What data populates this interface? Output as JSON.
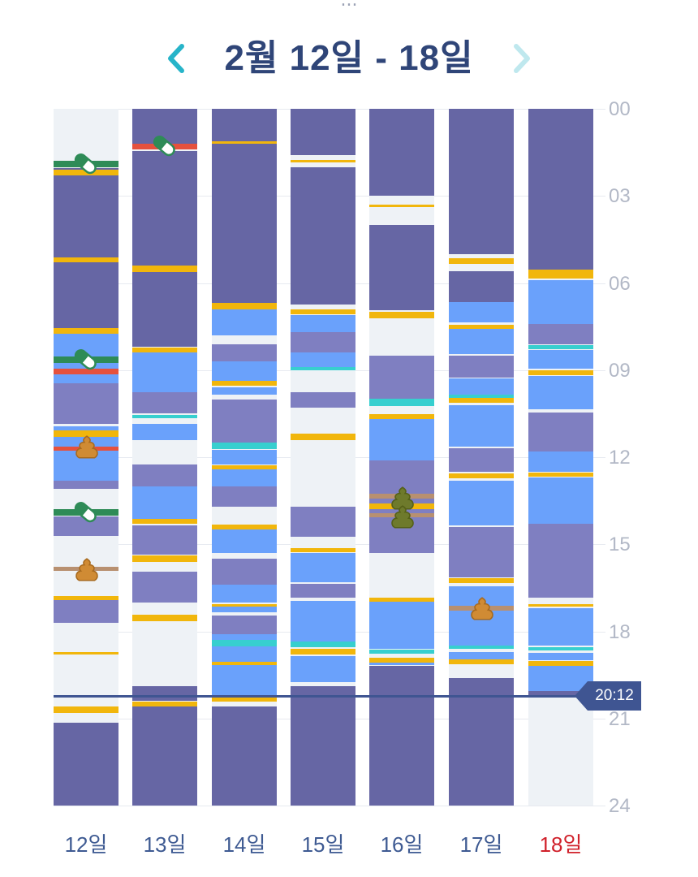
{
  "header": {
    "top_text": "...",
    "title": "2월 12일 - 18일",
    "prev_icon": "chevron-left-icon",
    "next_icon": "chevron-right-icon",
    "accent": "#27b4c9"
  },
  "hours": [
    "00",
    "03",
    "06",
    "09",
    "12",
    "15",
    "18",
    "21",
    "24"
  ],
  "now_time": "20:12",
  "colors": {
    "night_sleep": "#6666a4",
    "nap": "#7f7fc1",
    "awake_light": "#6aa1fb",
    "background": "#eef2f6",
    "feeding": "#f1b60c",
    "teal": "#37cfcf",
    "medicine_red": "#e5513d",
    "medicine_green": "#2e8b57",
    "diaper_brown": "#b89070",
    "now_line": "#3f5592"
  },
  "days": [
    {
      "label": "12일",
      "sunday": false,
      "segments": [
        {
          "start": 2.05,
          "end": 5.15,
          "type": "night_sleep"
        },
        {
          "start": 5.3,
          "end": 7.55,
          "type": "night_sleep"
        },
        {
          "start": 7.7,
          "end": 9.45,
          "type": "awake_light"
        },
        {
          "start": 9.45,
          "end": 10.85,
          "type": "nap"
        },
        {
          "start": 10.95,
          "end": 12.8,
          "type": "awake_light"
        },
        {
          "start": 12.8,
          "end": 13.1,
          "type": "nap"
        },
        {
          "start": 14.05,
          "end": 14.7,
          "type": "nap"
        },
        {
          "start": 16.8,
          "end": 17.7,
          "type": "nap"
        },
        {
          "start": 21.15,
          "end": 24,
          "type": "night_sleep"
        }
      ],
      "events": [
        {
          "at": 1.9,
          "h": 0.22,
          "type": "medicine_green"
        },
        {
          "at": 2.2,
          "h": 0.18,
          "type": "feeding"
        },
        {
          "at": 5.2,
          "h": 0.16,
          "type": "feeding"
        },
        {
          "at": 7.65,
          "h": 0.22,
          "type": "feeding"
        },
        {
          "at": 8.65,
          "h": 0.22,
          "type": "medicine_green"
        },
        {
          "at": 9.05,
          "h": 0.22,
          "type": "medicine_red"
        },
        {
          "at": 11.2,
          "h": 0.22,
          "type": "feeding"
        },
        {
          "at": 11.7,
          "h": 0.14,
          "type": "medicine_red"
        },
        {
          "at": 13.9,
          "h": 0.22,
          "type": "medicine_green"
        },
        {
          "at": 15.85,
          "h": 0.16,
          "type": "diaper_brown"
        },
        {
          "at": 16.85,
          "h": 0.14,
          "type": "feeding"
        },
        {
          "at": 18.75,
          "h": 0.07,
          "type": "feeding"
        },
        {
          "at": 20.7,
          "h": 0.22,
          "type": "feeding"
        }
      ],
      "icons": [
        {
          "kind": "pill",
          "at": 1.9
        },
        {
          "kind": "pill",
          "at": 8.65
        },
        {
          "kind": "poop",
          "at": 11.65
        },
        {
          "kind": "pill",
          "at": 13.9
        },
        {
          "kind": "poop",
          "at": 15.85
        }
      ]
    },
    {
      "label": "13일",
      "sunday": false,
      "segments": [
        {
          "start": 0,
          "end": 1.2,
          "type": "night_sleep"
        },
        {
          "start": 1.45,
          "end": 5.45,
          "type": "night_sleep"
        },
        {
          "start": 5.6,
          "end": 8.2,
          "type": "night_sleep"
        },
        {
          "start": 8.4,
          "end": 9.75,
          "type": "awake_light"
        },
        {
          "start": 9.75,
          "end": 10.5,
          "type": "nap"
        },
        {
          "start": 10.85,
          "end": 11.4,
          "type": "awake_light"
        },
        {
          "start": 12.25,
          "end": 13.0,
          "type": "nap"
        },
        {
          "start": 13.0,
          "end": 14.15,
          "type": "awake_light"
        },
        {
          "start": 14.35,
          "end": 15.35,
          "type": "nap"
        },
        {
          "start": 15.95,
          "end": 17.0,
          "type": "nap"
        },
        {
          "start": 19.9,
          "end": 20.4,
          "type": "night_sleep"
        },
        {
          "start": 20.6,
          "end": 24,
          "type": "night_sleep"
        }
      ],
      "events": [
        {
          "at": 1.3,
          "h": 0.22,
          "type": "medicine_red"
        },
        {
          "at": 5.5,
          "h": 0.22,
          "type": "feeding"
        },
        {
          "at": 8.3,
          "h": 0.18,
          "type": "feeding"
        },
        {
          "at": 10.6,
          "h": 0.12,
          "type": "teal"
        },
        {
          "at": 14.2,
          "h": 0.16,
          "type": "feeding"
        },
        {
          "at": 15.5,
          "h": 0.22,
          "type": "feeding"
        },
        {
          "at": 17.55,
          "h": 0.22,
          "type": "feeding"
        },
        {
          "at": 20.5,
          "h": 0.18,
          "type": "feeding"
        }
      ],
      "icons": [
        {
          "kind": "pill",
          "at": 1.3
        }
      ]
    },
    {
      "label": "14일",
      "sunday": false,
      "segments": [
        {
          "start": 0,
          "end": 6.7,
          "type": "night_sleep"
        },
        {
          "start": 6.9,
          "end": 7.8,
          "type": "awake_light"
        },
        {
          "start": 8.1,
          "end": 8.7,
          "type": "nap"
        },
        {
          "start": 8.7,
          "end": 9.4,
          "type": "awake_light"
        },
        {
          "start": 9.6,
          "end": 9.85,
          "type": "awake_light"
        },
        {
          "start": 10.0,
          "end": 11.5,
          "type": "nap"
        },
        {
          "start": 11.75,
          "end": 12.25,
          "type": "awake_light"
        },
        {
          "start": 12.4,
          "end": 13.0,
          "type": "awake_light"
        },
        {
          "start": 13.0,
          "end": 13.7,
          "type": "nap"
        },
        {
          "start": 14.5,
          "end": 15.3,
          "type": "awake_light"
        },
        {
          "start": 15.5,
          "end": 16.4,
          "type": "nap"
        },
        {
          "start": 16.4,
          "end": 17.0,
          "type": "awake_light"
        },
        {
          "start": 17.1,
          "end": 17.35,
          "type": "awake_light"
        },
        {
          "start": 17.45,
          "end": 18.1,
          "type": "nap"
        },
        {
          "start": 18.1,
          "end": 19.05,
          "type": "awake_light"
        },
        {
          "start": 19.05,
          "end": 20.2,
          "type": "awake_light"
        },
        {
          "start": 20.6,
          "end": 24,
          "type": "night_sleep"
        }
      ],
      "events": [
        {
          "at": 1.15,
          "h": 0.08,
          "type": "feeding"
        },
        {
          "at": 6.8,
          "h": 0.22,
          "type": "feeding"
        },
        {
          "at": 9.45,
          "h": 0.16,
          "type": "feeding"
        },
        {
          "at": 11.6,
          "h": 0.22,
          "type": "teal"
        },
        {
          "at": 12.35,
          "h": 0.16,
          "type": "feeding"
        },
        {
          "at": 14.4,
          "h": 0.16,
          "type": "feeding"
        },
        {
          "at": 17.1,
          "h": 0.1,
          "type": "feeding"
        },
        {
          "at": 18.4,
          "h": 0.22,
          "type": "teal"
        },
        {
          "at": 19.1,
          "h": 0.1,
          "type": "feeding"
        },
        {
          "at": 20.3,
          "h": 0.22,
          "type": "feeding"
        }
      ],
      "icons": []
    },
    {
      "label": "15일",
      "sunday": false,
      "segments": [
        {
          "start": 0,
          "end": 1.6,
          "type": "night_sleep"
        },
        {
          "start": 2.0,
          "end": 6.75,
          "type": "night_sleep"
        },
        {
          "start": 7.1,
          "end": 7.7,
          "type": "awake_light"
        },
        {
          "start": 7.7,
          "end": 8.4,
          "type": "nap"
        },
        {
          "start": 8.4,
          "end": 8.9,
          "type": "awake_light"
        },
        {
          "start": 9.75,
          "end": 10.3,
          "type": "nap"
        },
        {
          "start": 13.7,
          "end": 14.75,
          "type": "nap"
        },
        {
          "start": 15.3,
          "end": 16.3,
          "type": "awake_light"
        },
        {
          "start": 16.35,
          "end": 16.85,
          "type": "nap"
        },
        {
          "start": 16.95,
          "end": 18.4,
          "type": "awake_light"
        },
        {
          "start": 18.85,
          "end": 19.75,
          "type": "awake_light"
        },
        {
          "start": 19.9,
          "end": 24,
          "type": "night_sleep"
        }
      ],
      "events": [
        {
          "at": 1.8,
          "h": 0.08,
          "type": "feeding"
        },
        {
          "at": 7.0,
          "h": 0.18,
          "type": "feeding"
        },
        {
          "at": 8.95,
          "h": 0.1,
          "type": "teal"
        },
        {
          "at": 11.3,
          "h": 0.22,
          "type": "feeding"
        },
        {
          "at": 15.2,
          "h": 0.16,
          "type": "feeding"
        },
        {
          "at": 18.45,
          "h": 0.2,
          "type": "teal"
        },
        {
          "at": 18.7,
          "h": 0.22,
          "type": "feeding"
        }
      ],
      "icons": []
    },
    {
      "label": "16일",
      "sunday": false,
      "segments": [
        {
          "start": 0,
          "end": 3.0,
          "type": "night_sleep"
        },
        {
          "start": 4.0,
          "end": 6.95,
          "type": "night_sleep"
        },
        {
          "start": 8.5,
          "end": 10.0,
          "type": "nap"
        },
        {
          "start": 10.6,
          "end": 12.1,
          "type": "awake_light"
        },
        {
          "start": 12.1,
          "end": 15.3,
          "type": "nap"
        },
        {
          "start": 16.9,
          "end": 18.6,
          "type": "awake_light"
        },
        {
          "start": 18.9,
          "end": 19.15,
          "type": "awake_light"
        },
        {
          "start": 19.2,
          "end": 24,
          "type": "night_sleep"
        }
      ],
      "events": [
        {
          "at": 3.35,
          "h": 0.08,
          "type": "feeding"
        },
        {
          "at": 7.1,
          "h": 0.22,
          "type": "feeding"
        },
        {
          "at": 10.1,
          "h": 0.25,
          "type": "teal"
        },
        {
          "at": 10.6,
          "h": 0.16,
          "type": "feeding"
        },
        {
          "at": 13.35,
          "h": 0.16,
          "type": "diaper_brown"
        },
        {
          "at": 13.7,
          "h": 0.2,
          "type": "feeding"
        },
        {
          "at": 14.0,
          "h": 0.16,
          "type": "diaper_brown"
        },
        {
          "at": 16.9,
          "h": 0.14,
          "type": "feeding"
        },
        {
          "at": 18.7,
          "h": 0.12,
          "type": "teal"
        },
        {
          "at": 19.0,
          "h": 0.16,
          "type": "feeding"
        }
      ],
      "icons": [
        {
          "kind": "poop_olive",
          "at": 13.4
        },
        {
          "kind": "poop_olive",
          "at": 14.05
        }
      ]
    },
    {
      "label": "17일",
      "sunday": false,
      "segments": [
        {
          "start": 0,
          "end": 5.0,
          "type": "night_sleep"
        },
        {
          "start": 5.6,
          "end": 6.65,
          "type": "night_sleep"
        },
        {
          "start": 6.65,
          "end": 7.35,
          "type": "awake_light"
        },
        {
          "start": 7.45,
          "end": 8.45,
          "type": "awake_light"
        },
        {
          "start": 8.5,
          "end": 9.25,
          "type": "nap"
        },
        {
          "start": 9.3,
          "end": 9.9,
          "type": "awake_light"
        },
        {
          "start": 10.2,
          "end": 11.65,
          "type": "awake_light"
        },
        {
          "start": 11.7,
          "end": 12.5,
          "type": "nap"
        },
        {
          "start": 12.8,
          "end": 14.35,
          "type": "awake_light"
        },
        {
          "start": 14.4,
          "end": 16.15,
          "type": "nap"
        },
        {
          "start": 16.45,
          "end": 18.5,
          "type": "awake_light"
        },
        {
          "start": 18.7,
          "end": 19.05,
          "type": "awake_light"
        },
        {
          "start": 19.6,
          "end": 24,
          "type": "night_sleep"
        }
      ],
      "events": [
        {
          "at": 5.25,
          "h": 0.18,
          "type": "feeding"
        },
        {
          "at": 7.5,
          "h": 0.14,
          "type": "feeding"
        },
        {
          "at": 9.95,
          "h": 0.22,
          "type": "teal"
        },
        {
          "at": 10.05,
          "h": 0.16,
          "type": "feeding"
        },
        {
          "at": 12.65,
          "h": 0.16,
          "type": "feeding"
        },
        {
          "at": 16.25,
          "h": 0.18,
          "type": "feeding"
        },
        {
          "at": 17.2,
          "h": 0.16,
          "type": "diaper_brown"
        },
        {
          "at": 18.55,
          "h": 0.12,
          "type": "teal"
        },
        {
          "at": 19.05,
          "h": 0.16,
          "type": "feeding"
        }
      ],
      "icons": [
        {
          "kind": "poop",
          "at": 17.2
        }
      ]
    },
    {
      "label": "18일",
      "sunday": true,
      "segments": [
        {
          "start": 0,
          "end": 5.55,
          "type": "night_sleep"
        },
        {
          "start": 5.9,
          "end": 7.4,
          "type": "awake_light"
        },
        {
          "start": 7.4,
          "end": 8.1,
          "type": "nap"
        },
        {
          "start": 8.3,
          "end": 8.95,
          "type": "awake_light"
        },
        {
          "start": 9.2,
          "end": 10.35,
          "type": "awake_light"
        },
        {
          "start": 10.45,
          "end": 11.8,
          "type": "nap"
        },
        {
          "start": 11.8,
          "end": 12.5,
          "type": "awake_light"
        },
        {
          "start": 12.7,
          "end": 14.3,
          "type": "awake_light"
        },
        {
          "start": 14.3,
          "end": 16.85,
          "type": "nap"
        },
        {
          "start": 17.2,
          "end": 18.5,
          "type": "awake_light"
        },
        {
          "start": 18.75,
          "end": 19.0,
          "type": "awake_light"
        },
        {
          "start": 19.2,
          "end": 20.05,
          "type": "awake_light"
        },
        {
          "start": 20.05,
          "end": 20.2,
          "type": "night_sleep"
        }
      ],
      "events": [
        {
          "at": 5.7,
          "h": 0.3,
          "type": "feeding"
        },
        {
          "at": 8.2,
          "h": 0.14,
          "type": "teal"
        },
        {
          "at": 9.1,
          "h": 0.16,
          "type": "feeding"
        },
        {
          "at": 12.6,
          "h": 0.16,
          "type": "feeding"
        },
        {
          "at": 17.1,
          "h": 0.1,
          "type": "feeding"
        },
        {
          "at": 18.6,
          "h": 0.12,
          "type": "teal"
        },
        {
          "at": 19.1,
          "h": 0.16,
          "type": "feeding"
        }
      ],
      "icons": []
    }
  ]
}
